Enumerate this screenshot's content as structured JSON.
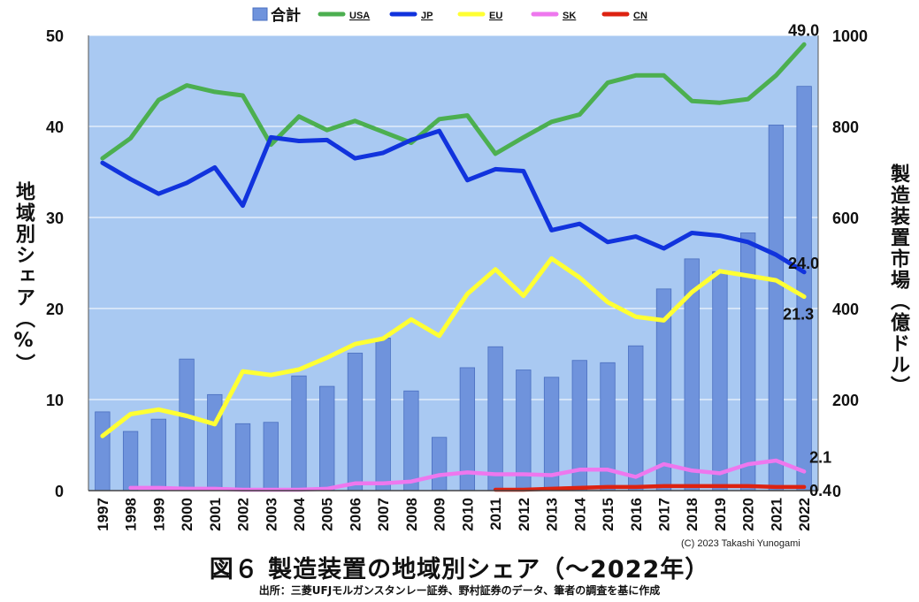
{
  "chart_data": {
    "type": "bar+line",
    "title": "図６ 製造装置の地域別シェア（～2022年）",
    "source": "出所：三菱UFJモルガンスタンレー証券、野村証券のデータ、筆者の調査を基に作成",
    "copyright": "(C) 2023 Takashi Yunogami",
    "ylabel_left": "地域別シェア（%）",
    "ylabel_right": "製造装置市場（億ドル）",
    "ylim_left": [
      0,
      50
    ],
    "ylim_right": [
      0,
      1000
    ],
    "yticks_left": [
      "0",
      "10",
      "20",
      "30",
      "40",
      "50"
    ],
    "yticks_right": [
      "0",
      "200",
      "400",
      "600",
      "800",
      "1000"
    ],
    "categories": [
      "1997",
      "1998",
      "1999",
      "2000",
      "2001",
      "2002",
      "2003",
      "2004",
      "2005",
      "2006",
      "2007",
      "2008",
      "2009",
      "2010",
      "2011",
      "2012",
      "2013",
      "2014",
      "2015",
      "2016",
      "2017",
      "2018",
      "2019",
      "2020",
      "2021",
      "2022"
    ],
    "bars": {
      "name": "合計",
      "color": "#6f93dc",
      "values": [
        173,
        130,
        157,
        289,
        211,
        147,
        150,
        252,
        229,
        302,
        335,
        219,
        117,
        270,
        316,
        265,
        249,
        286,
        281,
        318,
        443,
        509,
        481,
        566,
        803,
        888
      ]
    },
    "series": [
      {
        "name": "USA",
        "color": "#4caf50",
        "values": [
          36.5,
          38.7,
          42.9,
          44.5,
          43.8,
          43.4,
          38.0,
          41.1,
          39.6,
          40.6,
          39.4,
          38.2,
          40.8,
          41.2,
          37.0,
          38.8,
          40.5,
          41.3,
          44.8,
          45.6,
          45.6,
          42.8,
          42.6,
          43.0,
          45.6,
          49.0
        ]
      },
      {
        "name": "JP",
        "color": "#1133dd",
        "values": [
          36.0,
          34.2,
          32.6,
          33.8,
          35.5,
          31.3,
          38.8,
          38.4,
          38.5,
          36.5,
          37.1,
          38.5,
          39.5,
          34.1,
          35.3,
          35.1,
          28.6,
          29.3,
          27.3,
          27.9,
          26.6,
          28.3,
          28.0,
          27.3,
          25.9,
          24.0
        ]
      },
      {
        "name": "EU",
        "color": "#ffff33",
        "values": [
          6.0,
          8.4,
          8.9,
          8.2,
          7.3,
          13.1,
          12.7,
          13.3,
          14.6,
          16.1,
          16.7,
          18.8,
          17.0,
          21.6,
          24.3,
          21.4,
          25.5,
          23.4,
          20.7,
          19.1,
          18.7,
          21.8,
          24.1,
          23.6,
          23.1,
          21.3
        ]
      },
      {
        "name": "SK",
        "color": "#ee77ee",
        "values": [
          null,
          0.3,
          0.3,
          0.2,
          0.2,
          0.1,
          0.1,
          0.1,
          0.2,
          0.8,
          0.8,
          1.0,
          1.7,
          2.0,
          1.8,
          1.8,
          1.7,
          2.3,
          2.3,
          1.5,
          2.9,
          2.2,
          1.9,
          2.9,
          3.3,
          2.1
        ]
      },
      {
        "name": "CN",
        "color": "#dd2211",
        "values": [
          null,
          null,
          null,
          null,
          null,
          null,
          null,
          null,
          null,
          null,
          null,
          null,
          null,
          null,
          0.1,
          0.1,
          0.2,
          0.3,
          0.4,
          0.4,
          0.5,
          0.5,
          0.5,
          0.5,
          0.4,
          0.4
        ]
      }
    ],
    "end_labels": [
      "49.0",
      "24.0",
      "21.3",
      "2.1",
      "0.4"
    ],
    "legend_position": "top"
  }
}
